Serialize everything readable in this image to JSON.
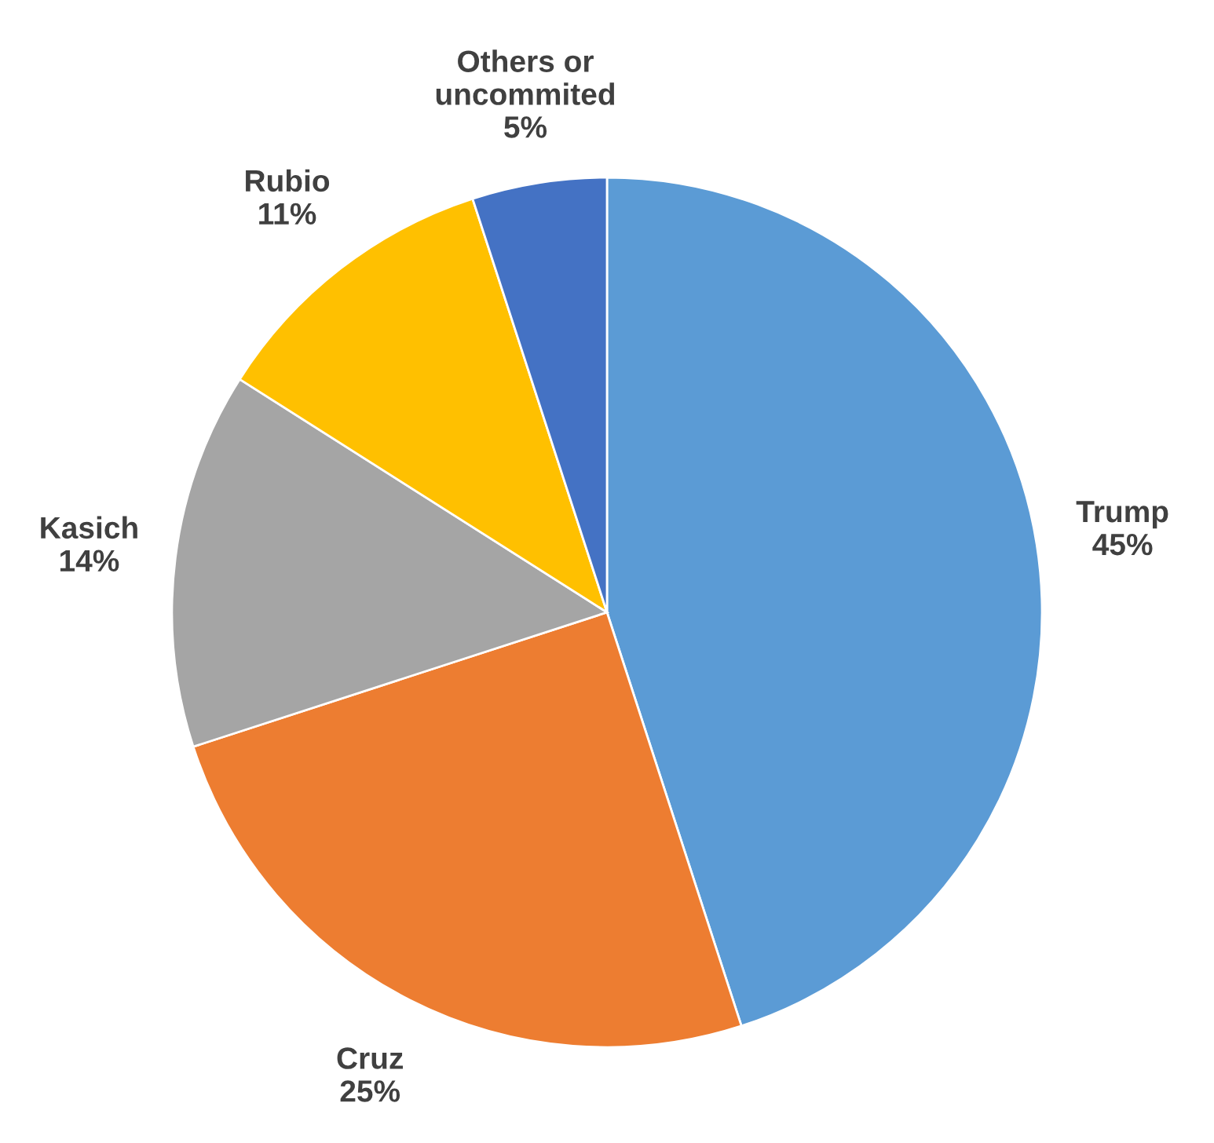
{
  "chart_data": {
    "type": "pie",
    "categories": [
      "Trump",
      "Cruz",
      "Kasich",
      "Rubio",
      "Others or\nuncommited"
    ],
    "values": [
      45,
      25,
      14,
      11,
      5
    ],
    "value_labels": [
      "45%",
      "25%",
      "14%",
      "11%",
      "5%"
    ],
    "colors": [
      "#5b9bd5",
      "#ed7d31",
      "#a5a5a5",
      "#ffc000",
      "#4472c4"
    ],
    "legend": false
  }
}
